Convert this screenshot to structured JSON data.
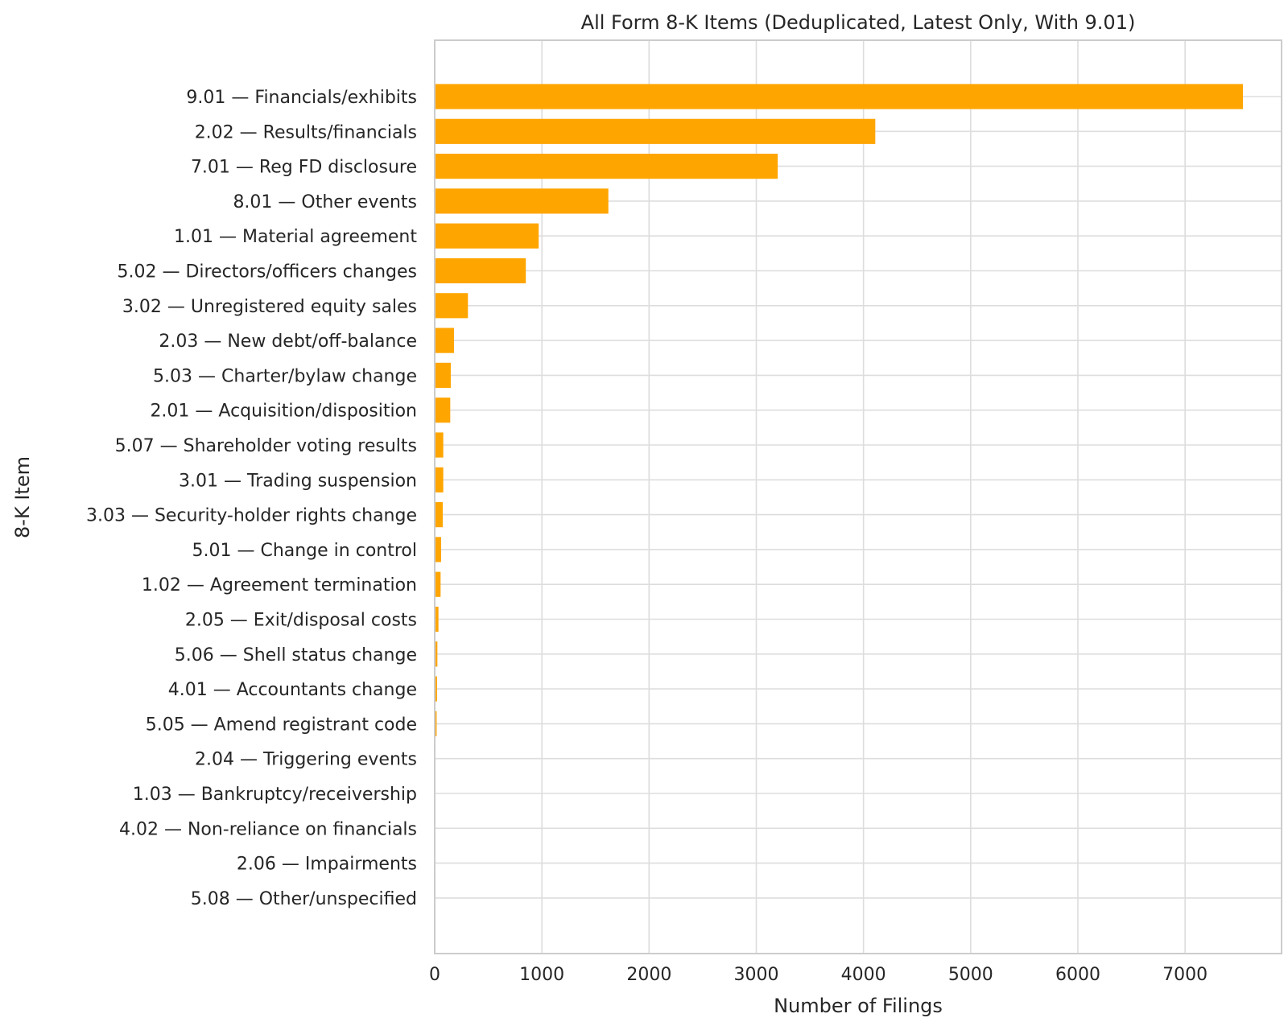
{
  "chart_data": {
    "type": "bar",
    "orientation": "horizontal",
    "title": "All Form 8-K Items (Deduplicated, Latest Only, With 9.01)",
    "xlabel": "Number of Filings",
    "ylabel": "8-K Item",
    "xlim": [
      0,
      7900
    ],
    "xticks": [
      0,
      1000,
      2000,
      3000,
      4000,
      5000,
      6000,
      7000
    ],
    "grid": true,
    "bar_color": "#FFA500",
    "categories": [
      "9.01 — Financials/exhibits",
      "2.02 — Results/financials",
      "7.01 — Reg FD disclosure",
      "8.01 — Other events",
      "1.01 — Material agreement",
      "5.02 — Directors/officers changes",
      "3.02 — Unregistered equity sales",
      "2.03 — New debt/off-balance",
      "5.03 — Charter/bylaw change",
      "2.01 — Acquisition/disposition",
      "5.07 — Shareholder voting results",
      "3.01 — Trading suspension",
      "3.03 — Security-holder rights change",
      "5.01 — Change in control",
      "1.02 — Agreement termination",
      "2.05 — Exit/disposal costs",
      "5.06 — Shell status change",
      "4.01 — Accountants change",
      "5.05 — Amend registrant code",
      "2.04 — Triggering events",
      "1.03 — Bankruptcy/receivership",
      "4.02 — Non-reliance on financials",
      "2.06 — Impairments",
      "5.08 — Other/unspecified"
    ],
    "values": [
      7540,
      4110,
      3200,
      1620,
      970,
      850,
      310,
      180,
      150,
      145,
      80,
      80,
      75,
      60,
      55,
      35,
      25,
      22,
      18,
      5,
      4,
      3,
      2,
      1
    ]
  }
}
